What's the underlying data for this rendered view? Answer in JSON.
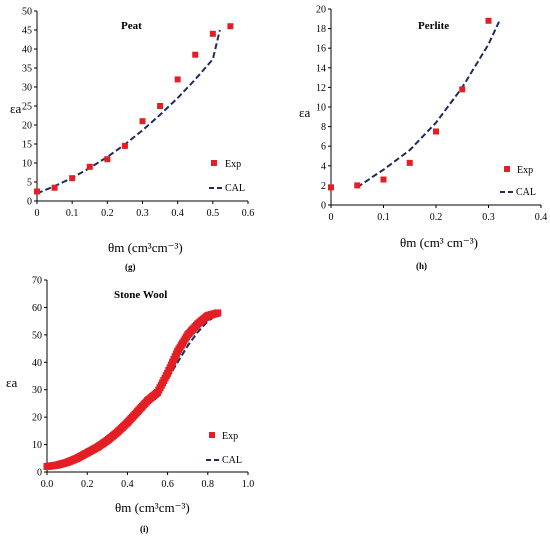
{
  "figure_colors": {
    "exp_marker": "#e31e24",
    "cal_line": "#1f2a5e"
  },
  "chart_data": [
    {
      "id": "peat",
      "type": "scatter",
      "title": "Peat",
      "panel_label": "(g)",
      "xlabel": "θm (cm³cm⁻³)",
      "ylabel": "εa",
      "xlim": [
        0,
        0.6
      ],
      "ylim": [
        0,
        50
      ],
      "xticks": [
        "0",
        "0.1",
        "0.2",
        "0.3",
        "0.4",
        "0.5",
        "0.6"
      ],
      "yticks": [
        "0",
        "5",
        "10",
        "15",
        "20",
        "25",
        "30",
        "35",
        "40",
        "45",
        "50"
      ],
      "legend": {
        "position": "bottom-right",
        "entries": [
          "Exp",
          "CAL"
        ]
      },
      "series": [
        {
          "name": "Exp",
          "kind": "points",
          "x": [
            0,
            0.05,
            0.1,
            0.15,
            0.2,
            0.25,
            0.3,
            0.35,
            0.4,
            0.45,
            0.5,
            0.55
          ],
          "y": [
            2.5,
            3.5,
            6,
            9,
            11,
            14.5,
            21,
            25,
            32,
            38.5,
            44,
            46
          ]
        },
        {
          "name": "CAL",
          "kind": "dashed-line",
          "x": [
            0,
            0.05,
            0.1,
            0.15,
            0.2,
            0.25,
            0.3,
            0.35,
            0.4,
            0.45,
            0.5,
            0.52
          ],
          "y": [
            2.0,
            3.9,
            6.1,
            8.7,
            11.6,
            14.9,
            18.6,
            22.7,
            27.1,
            32.0,
            37.3,
            45.0
          ]
        }
      ]
    },
    {
      "id": "perlite",
      "type": "scatter",
      "title": "Perlite",
      "panel_label": "(h)",
      "xlabel": "θm (cm³ cm⁻³)",
      "ylabel": "εa",
      "xlim": [
        0,
        0.4
      ],
      "ylim": [
        0,
        20
      ],
      "xticks": [
        "0",
        "0.1",
        "0.2",
        "0.3",
        "0.4"
      ],
      "yticks": [
        "0",
        "2",
        "4",
        "6",
        "8",
        "10",
        "12",
        "14",
        "16",
        "18",
        "20"
      ],
      "legend": {
        "position": "bottom-right",
        "entries": [
          "Exp",
          "CAL"
        ]
      },
      "series": [
        {
          "name": "Exp",
          "kind": "points",
          "x": [
            0,
            0.05,
            0.1,
            0.15,
            0.2,
            0.25,
            0.3
          ],
          "y": [
            1.8,
            2.0,
            2.6,
            4.3,
            7.5,
            11.8,
            18.8
          ]
        },
        {
          "name": "CAL",
          "kind": "dashed-line",
          "x": [
            0.05,
            0.08,
            0.1,
            0.15,
            0.2,
            0.25,
            0.3,
            0.32
          ],
          "y": [
            1.8,
            2.9,
            3.6,
            5.6,
            8.4,
            12.0,
            16.4,
            18.7
          ]
        }
      ]
    },
    {
      "id": "stonewool",
      "type": "scatter",
      "title": "Stone Wool",
      "panel_label": "(i)",
      "xlabel": "θm (cm³cm⁻³)",
      "ylabel": "εa",
      "xlim": [
        0,
        1.0
      ],
      "ylim": [
        0,
        70
      ],
      "xticks": [
        "0.0",
        "0.2",
        "0.4",
        "0.6",
        "0.8",
        "1.0"
      ],
      "yticks": [
        "0",
        "10",
        "20",
        "30",
        "40",
        "50",
        "60",
        "70"
      ],
      "legend": {
        "position": "bottom-right",
        "entries": [
          "Exp",
          "CAL"
        ]
      },
      "series": [
        {
          "name": "Exp",
          "kind": "dense-points",
          "x": [
            0,
            0.05,
            0.1,
            0.15,
            0.2,
            0.25,
            0.3,
            0.35,
            0.4,
            0.45,
            0.5,
            0.55,
            0.6,
            0.65,
            0.7,
            0.75,
            0.8,
            0.85
          ],
          "y": [
            2,
            2.5,
            3.5,
            5,
            7,
            9,
            11.5,
            14.5,
            18,
            22,
            26,
            29,
            36,
            44,
            50,
            54,
            57,
            58
          ]
        },
        {
          "name": "CAL",
          "kind": "dashed-line",
          "x": [
            0,
            0.1,
            0.2,
            0.3,
            0.4,
            0.5,
            0.55,
            0.6,
            0.65,
            0.7,
            0.75,
            0.8,
            0.85
          ],
          "y": [
            2,
            3.5,
            7,
            12,
            18,
            25,
            29,
            34,
            40,
            46,
            51,
            55,
            57.5
          ]
        }
      ]
    }
  ]
}
